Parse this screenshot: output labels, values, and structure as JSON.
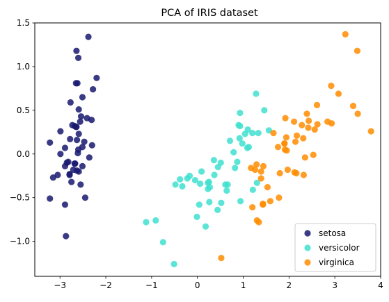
{
  "chart_data": {
    "type": "scatter",
    "title": "PCA of IRIS dataset",
    "xlabel": "",
    "ylabel": "",
    "xlim": [
      -3.55,
      4.0
    ],
    "ylim": [
      -1.4,
      1.5
    ],
    "xticks": [
      -3,
      -2,
      -1,
      0,
      1,
      2,
      3,
      4
    ],
    "yticks": [
      -1.0,
      -0.5,
      0.0,
      0.5,
      1.0,
      1.5
    ],
    "xtick_labels": [
      "−3",
      "−2",
      "−1",
      "0",
      "1",
      "2",
      "3",
      "4"
    ],
    "ytick_labels": [
      "−1.0",
      "−0.5",
      "0.0",
      "0.5",
      "1.0",
      "1.5"
    ],
    "grid": false,
    "legend_position": "lower-right",
    "series": [
      {
        "name": "setosa",
        "color": "#191970",
        "x": [
          -2.68,
          -2.71,
          -2.89,
          -2.75,
          -2.73,
          -2.28,
          -2.82,
          -2.63,
          -2.89,
          -2.67,
          -2.51,
          -2.61,
          -2.79,
          -3.22,
          -2.64,
          -2.38,
          -2.62,
          -2.65,
          -2.2,
          -2.59,
          -2.31,
          -2.54,
          -3.22,
          -2.3,
          -2.36,
          -2.51,
          -2.47,
          -2.56,
          -2.64,
          -2.63,
          -2.59,
          -2.41,
          -2.65,
          -2.6,
          -2.68,
          -2.89,
          -2.99,
          -2.6,
          -2.87,
          -2.51,
          -2.78,
          -2.85,
          -2.79,
          -3.05,
          -3.15,
          -2.45,
          -2.55,
          -2.59,
          -2.77,
          -2.99
        ],
        "y": [
          0.32,
          -0.18,
          -0.14,
          -0.32,
          0.33,
          0.74,
          -0.09,
          0.16,
          -0.58,
          -0.11,
          0.65,
          0.01,
          -0.24,
          -0.51,
          1.18,
          1.34,
          0.81,
          0.31,
          0.87,
          0.51,
          0.39,
          0.43,
          0.13,
          0.1,
          -0.04,
          -0.14,
          0.14,
          0.37,
          0.31,
          -0.19,
          -0.2,
          0.41,
          0.81,
          1.1,
          -0.11,
          0.07,
          0.26,
          0.05,
          -0.94,
          0.08,
          0.17,
          -0.1,
          -0.23,
          -0.24,
          -0.27,
          -0.5,
          -0.35,
          0.23,
          0.59,
          0.0
        ]
      },
      {
        "name": "versicolor",
        "color": "#40e0d0",
        "x": [
          1.28,
          0.93,
          1.46,
          0.18,
          1.09,
          0.64,
          1.1,
          -0.75,
          1.04,
          -0.01,
          -0.51,
          0.51,
          0.26,
          0.98,
          -0.17,
          0.93,
          0.66,
          0.23,
          0.94,
          0.04,
          1.12,
          0.36,
          1.3,
          0.92,
          0.71,
          0.9,
          1.33,
          1.56,
          0.82,
          -0.33,
          -0.38,
          -0.48,
          -0.22,
          1.21,
          0.44,
          0.79,
          1.2,
          0.37,
          0.25,
          0.27,
          0.52,
          0.87,
          -0.05,
          -0.91,
          0.23,
          0.09,
          0.06,
          0.45,
          -1.12,
          0.61
        ],
        "y": [
          0.69,
          0.32,
          0.5,
          -0.83,
          0.07,
          -0.42,
          0.28,
          -1.01,
          0.23,
          -0.72,
          -1.26,
          -0.1,
          -0.55,
          0.12,
          -0.25,
          0.47,
          -0.35,
          -0.33,
          -0.54,
          -0.58,
          0.08,
          -0.07,
          -0.33,
          0.18,
          0.15,
          0.33,
          0.24,
          0.27,
          -0.16,
          -0.37,
          -0.29,
          -0.35,
          -0.28,
          -0.41,
          -0.64,
          0.02,
          0.24,
          -0.24,
          -0.32,
          -0.38,
          -0.56,
          -0.09,
          -0.3,
          -0.76,
          -0.4,
          -0.2,
          -0.34,
          -0.15,
          -0.78,
          -0.35
        ]
      },
      {
        "name": "virginica",
        "color": "#ff8c00",
        "x": [
          2.53,
          1.43,
          2.62,
          1.97,
          2.35,
          3.4,
          0.52,
          2.93,
          2.32,
          2.92,
          1.66,
          1.8,
          2.17,
          1.34,
          1.59,
          1.9,
          1.95,
          3.49,
          3.79,
          1.3,
          2.43,
          1.2,
          3.5,
          1.39,
          2.28,
          2.61,
          1.26,
          1.29,
          2.12,
          2.39,
          2.84,
          3.23,
          2.16,
          1.44,
          1.78,
          3.08,
          2.14,
          1.91,
          1.17,
          2.11,
          2.31,
          1.92,
          1.43,
          2.56,
          2.42,
          1.94,
          1.53,
          1.76,
          1.9,
          1.39
        ],
        "y": [
          -0.01,
          -0.57,
          0.34,
          -0.18,
          -0.04,
          0.55,
          -1.19,
          0.35,
          -0.24,
          0.78,
          0.24,
          -0.22,
          0.21,
          -0.78,
          -0.54,
          0.12,
          0.04,
          1.18,
          0.26,
          -0.76,
          0.38,
          -0.61,
          0.46,
          -0.2,
          0.33,
          0.56,
          -0.18,
          -0.12,
          -0.21,
          0.46,
          0.37,
          1.37,
          -0.22,
          -0.14,
          -0.5,
          0.69,
          0.14,
          0.05,
          -0.16,
          0.37,
          0.18,
          0.41,
          -0.58,
          0.28,
          0.3,
          0.19,
          -0.38,
          0.08,
          0.12,
          -0.28
        ]
      }
    ]
  }
}
